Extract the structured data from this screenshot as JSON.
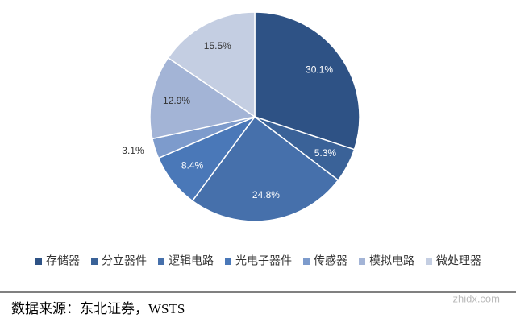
{
  "chart_data": {
    "type": "pie",
    "categories": [
      "存储器",
      "分立器件",
      "逻辑电路",
      "光电子器件",
      "传感器",
      "模拟电路",
      "微处理器"
    ],
    "values": [
      30.1,
      5.3,
      24.8,
      8.4,
      3.1,
      12.9,
      15.5
    ],
    "value_labels": [
      "30.1%",
      "5.3%",
      "24.8%",
      "8.4%",
      "3.1%",
      "12.9%",
      "15.5%"
    ],
    "colors": [
      "#2e5285",
      "#3a6298",
      "#4670ab",
      "#4a78b8",
      "#7d9bcc",
      "#a3b4d6",
      "#c4cee2"
    ],
    "legend": "bottom"
  },
  "source": "数据来源：东北证券，WSTS",
  "watermark": "zhidx.com"
}
